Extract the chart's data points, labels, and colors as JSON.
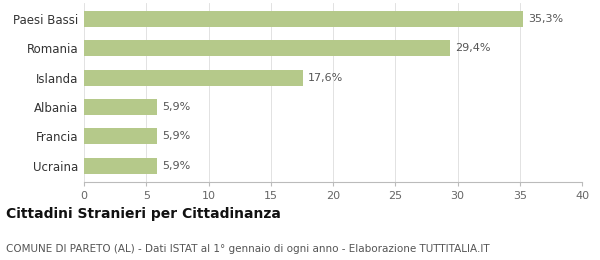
{
  "categories": [
    "Ucraina",
    "Francia",
    "Albania",
    "Islanda",
    "Romania",
    "Paesi Bassi"
  ],
  "values": [
    5.9,
    5.9,
    5.9,
    17.6,
    29.4,
    35.3
  ],
  "labels": [
    "5,9%",
    "5,9%",
    "5,9%",
    "17,6%",
    "29,4%",
    "35,3%"
  ],
  "bar_color": "#b5c98a",
  "background_color": "#ffffff",
  "xlim": [
    0,
    40
  ],
  "xticks": [
    0,
    5,
    10,
    15,
    20,
    25,
    30,
    35,
    40
  ],
  "title": "Cittadini Stranieri per Cittadinanza",
  "subtitle": "COMUNE DI PARETO (AL) - Dati ISTAT al 1° gennaio di ogni anno - Elaborazione TUTTITALIA.IT",
  "title_fontsize": 10,
  "subtitle_fontsize": 7.5,
  "label_fontsize": 8,
  "tick_fontsize": 8,
  "ytick_fontsize": 8.5
}
